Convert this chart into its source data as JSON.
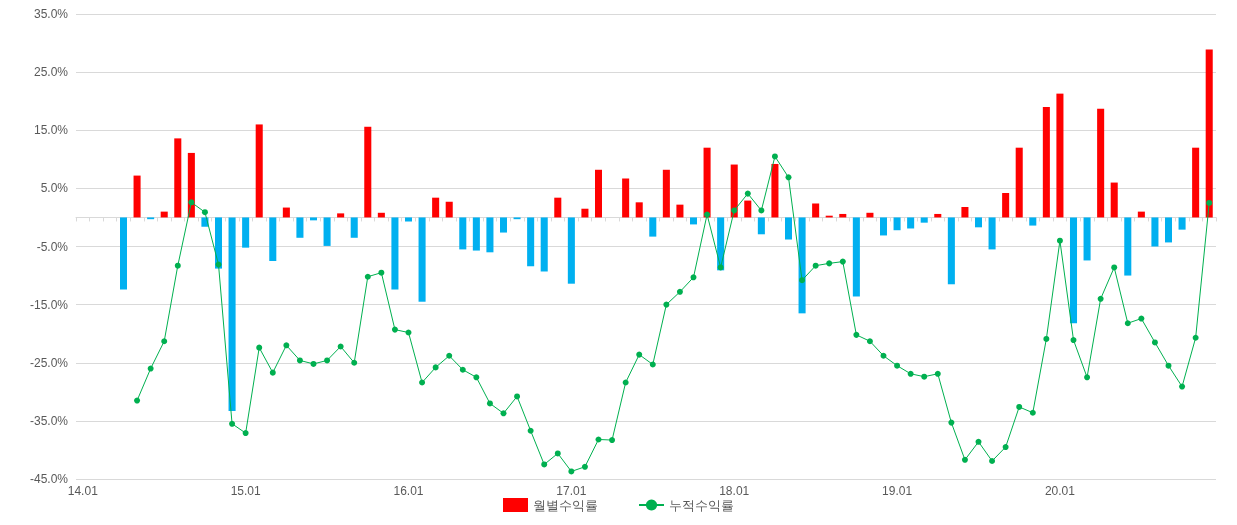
{
  "chart_data": {
    "type": "bar",
    "categories": [
      "14.01",
      null,
      null,
      null,
      null,
      null,
      null,
      null,
      null,
      null,
      null,
      null,
      "15.01",
      null,
      null,
      null,
      null,
      null,
      null,
      null,
      null,
      null,
      null,
      null,
      "16.01",
      null,
      null,
      null,
      null,
      null,
      null,
      null,
      null,
      null,
      null,
      null,
      "17.01",
      null,
      null,
      null,
      null,
      null,
      null,
      null,
      null,
      null,
      null,
      null,
      "18.01",
      null,
      null,
      null,
      null,
      null,
      null,
      null,
      null,
      null,
      null,
      null,
      "19.01",
      null,
      null,
      null,
      null,
      null,
      null,
      null,
      null,
      null,
      null,
      null,
      "20.01",
      null,
      null,
      null,
      null,
      null,
      null,
      null,
      null,
      null,
      null,
      null
    ],
    "series": [
      {
        "name": "월별수익률",
        "type": "bar",
        "color": "#ff0000",
        "values": [
          null,
          null,
          null,
          -12.4,
          7.2,
          -0.3,
          1.0,
          13.6,
          11.1,
          -1.6,
          -8.8,
          -33.3,
          -5.2,
          16.0,
          -7.5,
          1.7,
          -3.5,
          -0.5,
          -4.9,
          0.7,
          -3.5,
          15.6,
          0.8,
          -12.4,
          -0.7,
          -14.5,
          3.4,
          2.7,
          -5.5,
          -5.7,
          -6.0,
          -2.6,
          -0.3,
          -8.4,
          -9.3,
          3.4,
          -11.4,
          1.5,
          8.2,
          0,
          6.7,
          2.6,
          -3.3,
          8.2,
          2.2,
          -1.2,
          12.0,
          -9.1,
          9.1,
          2.9,
          -2.9,
          9.2,
          -3.8,
          -16.5,
          2.4,
          0.3,
          0.6,
          -13.6,
          0.8,
          -3.1,
          -2.2,
          -1.9,
          -0.9,
          0.6,
          -11.5,
          1.8,
          -1.7,
          -5.5,
          4.2,
          12.0,
          -1.4,
          19.0,
          21.3,
          -18.2,
          -7.4,
          18.7,
          6.0,
          -10.0,
          1.0,
          -5.0,
          -4.3,
          -2.1,
          12.0,
          28.9
        ],
        "colors": [
          "#ff0000",
          "#ff0000",
          "#ff0000",
          "#00b0f0",
          "#ff0000",
          "#00b0f0",
          "#ff0000",
          "#ff0000",
          "#ff0000",
          "#00b0f0",
          "#00b0f0",
          "#00b0f0",
          "#00b0f0",
          "#ff0000",
          "#00b0f0",
          "#ff0000",
          "#00b0f0",
          "#00b0f0",
          "#00b0f0",
          "#ff0000",
          "#00b0f0",
          "#ff0000",
          "#ff0000",
          "#00b0f0",
          "#00b0f0",
          "#00b0f0",
          "#ff0000",
          "#ff0000",
          "#00b0f0",
          "#00b0f0",
          "#00b0f0",
          "#00b0f0",
          "#00b0f0",
          "#00b0f0",
          "#00b0f0",
          "#ff0000",
          "#00b0f0",
          "#ff0000",
          "#ff0000",
          "#ff0000",
          "#ff0000",
          "#ff0000",
          "#00b0f0",
          "#ff0000",
          "#ff0000",
          "#00b0f0",
          "#ff0000",
          "#00b0f0",
          "#ff0000",
          "#ff0000",
          "#00b0f0",
          "#ff0000",
          "#00b0f0",
          "#00b0f0",
          "#ff0000",
          "#ff0000",
          "#ff0000",
          "#00b0f0",
          "#ff0000",
          "#00b0f0",
          "#00b0f0",
          "#00b0f0",
          "#00b0f0",
          "#ff0000",
          "#00b0f0",
          "#ff0000",
          "#00b0f0",
          "#00b0f0",
          "#ff0000",
          "#ff0000",
          "#00b0f0",
          "#ff0000",
          "#ff0000",
          "#00b0f0",
          "#00b0f0",
          "#ff0000",
          "#ff0000",
          "#00b0f0",
          "#ff0000",
          "#00b0f0",
          "#00b0f0",
          "#00b0f0",
          "#ff0000",
          "#ff0000"
        ]
      },
      {
        "name": "누적수익률",
        "type": "line",
        "color": "#00b050",
        "marker": "circle",
        "line_style": "solid",
        "values": [
          null,
          null,
          null,
          null,
          -31.5,
          -26.0,
          -21.3,
          -8.3,
          2.6,
          0.9,
          -8.1,
          -35.5,
          -37.1,
          -22.4,
          -26.7,
          -22.0,
          -24.6,
          -25.2,
          -24.6,
          -22.2,
          -25.0,
          -10.2,
          -9.5,
          -19.3,
          -19.8,
          -28.4,
          -25.8,
          -23.8,
          -26.2,
          -27.5,
          -32.0,
          -33.7,
          -30.8,
          -36.7,
          -42.5,
          -40.6,
          -43.7,
          -42.9,
          -38.2,
          -38.3,
          -28.4,
          -23.6,
          -25.3,
          -15.0,
          -12.8,
          -10.3,
          0.5,
          -8.6,
          1.2,
          4.1,
          1.2,
          10.5,
          6.9,
          -10.8,
          -8.3,
          -7.9,
          -7.6,
          -20.2,
          -21.3,
          -23.8,
          -25.5,
          -26.9,
          -27.4,
          -26.9,
          -35.3,
          -41.7,
          -38.6,
          -41.9,
          -39.5,
          -32.6,
          -33.6,
          -20.9,
          -4.0,
          -21.1,
          -27.5,
          -14.0,
          -8.6,
          -18.2,
          -17.4,
          -21.5,
          -25.5,
          -29.1,
          -20.7,
          2.5
        ]
      }
    ],
    "ylim": [
      -45,
      35
    ],
    "yticks": [
      {
        "value": -45,
        "label": "-45.0%"
      },
      {
        "value": -35,
        "label": "-35.0%"
      },
      {
        "value": -25,
        "label": "-25.0%"
      },
      {
        "value": -15,
        "label": "-15.0%"
      },
      {
        "value": -5,
        "label": "-5.0%"
      },
      {
        "value": 5,
        "label": "5.0%"
      },
      {
        "value": 15,
        "label": "15.0%"
      },
      {
        "value": 25,
        "label": "25.0%"
      },
      {
        "value": 35,
        "label": "35.0%"
      }
    ],
    "grid": "y",
    "legend": "bottom"
  }
}
